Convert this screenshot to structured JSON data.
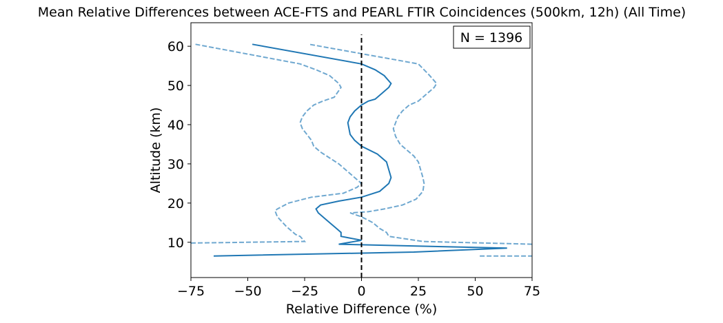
{
  "chart_data": {
    "type": "line",
    "title": "Mean Relative Differences between ACE-FTS and PEARL FTIR Coincidences (500km, 12h) (All Time)",
    "xlabel": "Relative Difference (%)",
    "ylabel": "Altitude (km)",
    "xlim": [
      -75,
      75
    ],
    "ylim": [
      1,
      66
    ],
    "xticks": [
      -75,
      -50,
      -25,
      0,
      25,
      50,
      75
    ],
    "yticks": [
      10,
      20,
      30,
      40,
      50,
      60
    ],
    "xtick_labels": [
      "−75",
      "−50",
      "−25",
      "0",
      "25",
      "50",
      "75"
    ],
    "ytick_labels": [
      "10",
      "20",
      "30",
      "40",
      "50",
      "60"
    ],
    "grid": false,
    "annotation": "N = 1396",
    "colors": {
      "mean": "#1f77b4",
      "bounds": "#6fa8d0",
      "zero_line": "#000000"
    },
    "reference_line": {
      "x": 0,
      "y_range": [
        1,
        63
      ],
      "style": "dashed"
    },
    "series": [
      {
        "style": "solid",
        "points": [
          [
            -65,
            6.5
          ],
          [
            23,
            7.5
          ],
          [
            64,
            8.5
          ],
          [
            -10,
            9.5
          ],
          [
            0,
            10.5
          ],
          [
            -9,
            11.5
          ],
          [
            -9,
            12.5
          ],
          [
            -11,
            13.5
          ],
          [
            -15,
            15.5
          ],
          [
            -19,
            17.5
          ],
          [
            -20,
            18.5
          ],
          [
            -18,
            19.5
          ],
          [
            -10,
            20.5
          ],
          [
            0,
            21.5
          ],
          [
            8,
            23
          ],
          [
            12,
            25
          ],
          [
            13,
            26.5
          ],
          [
            12,
            28.5
          ],
          [
            11,
            30.5
          ],
          [
            7,
            32.5
          ],
          [
            0,
            34.5
          ],
          [
            -3,
            36
          ],
          [
            -5,
            37.5
          ],
          [
            -6,
            40.5
          ],
          [
            -5,
            42
          ],
          [
            -3,
            43.5
          ],
          [
            0,
            45
          ],
          [
            3,
            46
          ],
          [
            6,
            46.5
          ],
          [
            9,
            48
          ],
          [
            12,
            49.5
          ],
          [
            13,
            50.5
          ],
          [
            10,
            52.5
          ],
          [
            6,
            54
          ],
          [
            0,
            55.5
          ],
          [
            -48,
            60.5
          ]
        ]
      },
      {
        "style": "dashed",
        "points": [
          [
            -75,
            9.8
          ],
          [
            -25,
            10.2
          ],
          [
            -27,
            11.5
          ],
          [
            -29,
            12
          ],
          [
            -30,
            12.5
          ],
          [
            -33,
            14
          ],
          [
            -37,
            16.5
          ],
          [
            -38,
            18
          ],
          [
            -37,
            18.5
          ],
          [
            -32,
            20
          ],
          [
            -22,
            21.5
          ],
          [
            -8,
            22.5
          ],
          [
            -2,
            24
          ],
          [
            0,
            25
          ],
          [
            -2,
            26
          ],
          [
            -6,
            28
          ],
          [
            -10,
            30
          ],
          [
            -14,
            31.5
          ],
          [
            -18,
            33
          ],
          [
            -21,
            34.5
          ],
          [
            -22,
            36
          ],
          [
            -24,
            37.5
          ],
          [
            -26,
            39
          ],
          [
            -27,
            40.5
          ],
          [
            -26,
            42
          ],
          [
            -24,
            43.5
          ],
          [
            -21,
            45
          ],
          [
            -17,
            46
          ],
          [
            -12,
            47
          ],
          [
            -9,
            49.5
          ],
          [
            -10,
            50.5
          ],
          [
            -14,
            52.5
          ],
          [
            -20,
            54
          ],
          [
            -27,
            55.5
          ],
          [
            -73,
            60.5
          ]
        ]
      },
      {
        "style": "dashed",
        "points": [
          [
            52,
            6.5
          ],
          [
            75,
            6.5
          ]
        ]
      },
      {
        "style": "dashed",
        "points": [
          [
            75,
            9.5
          ],
          [
            27,
            10.2
          ],
          [
            12,
            11.5
          ],
          [
            11,
            12.5
          ],
          [
            8,
            13.5
          ],
          [
            5,
            15
          ],
          [
            0,
            16.5
          ],
          [
            -5,
            17.5
          ],
          [
            3,
            17.8
          ],
          [
            10,
            18.5
          ],
          [
            18,
            19.5
          ],
          [
            24,
            21
          ],
          [
            27,
            23
          ],
          [
            27.5,
            25
          ],
          [
            27,
            26.5
          ],
          [
            26,
            28.5
          ],
          [
            25,
            30.5
          ],
          [
            23,
            32
          ],
          [
            20,
            33.5
          ],
          [
            17,
            35
          ],
          [
            15,
            37
          ],
          [
            14,
            39
          ],
          [
            15,
            40.5
          ],
          [
            16,
            42
          ],
          [
            18,
            43.5
          ],
          [
            21,
            45
          ],
          [
            25,
            46
          ],
          [
            28,
            47.5
          ],
          [
            32,
            49.5
          ],
          [
            33,
            50.5
          ],
          [
            30,
            52.5
          ],
          [
            25,
            55.5
          ],
          [
            -23,
            60.5
          ]
        ]
      }
    ]
  }
}
